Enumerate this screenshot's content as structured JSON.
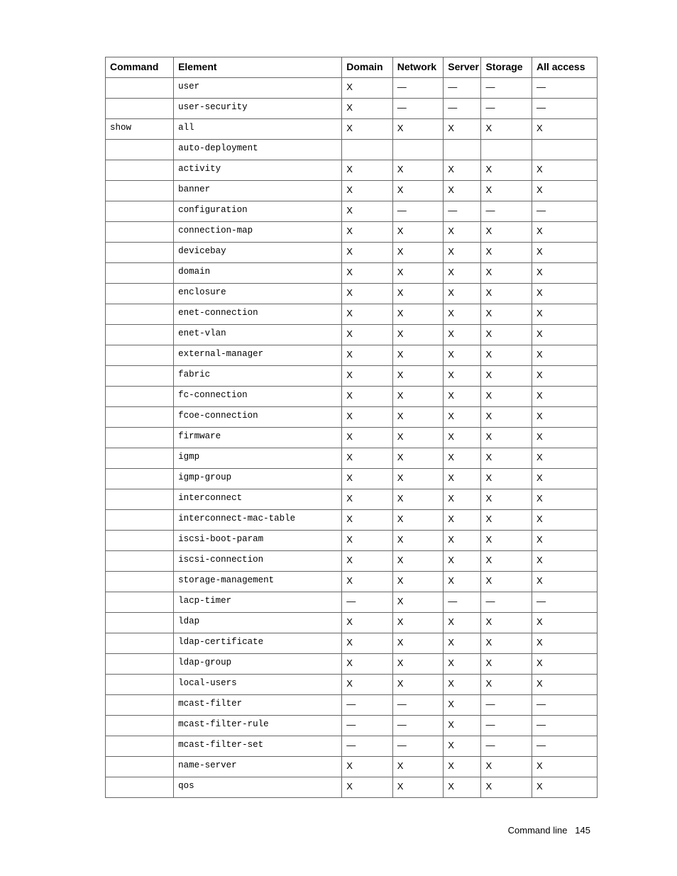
{
  "table": {
    "headers": [
      "Command",
      "Element",
      "Domain",
      "Network",
      "Server",
      "Storage",
      "All access"
    ],
    "rows": [
      {
        "command": "",
        "element": "user",
        "domain": "X",
        "network": "—",
        "server": "—",
        "storage": "—",
        "all": "—"
      },
      {
        "command": "",
        "element": "user-security",
        "domain": "X",
        "network": "—",
        "server": "—",
        "storage": "—",
        "all": "—"
      },
      {
        "command": "show",
        "element": "all",
        "domain": "X",
        "network": "X",
        "server": "X",
        "storage": "X",
        "all": "X"
      },
      {
        "command": "",
        "element": "auto-deployment",
        "domain": "",
        "network": "",
        "server": "",
        "storage": "",
        "all": ""
      },
      {
        "command": "",
        "element": "activity",
        "domain": "X",
        "network": "X",
        "server": "X",
        "storage": "X",
        "all": "X"
      },
      {
        "command": "",
        "element": "banner",
        "domain": "X",
        "network": "X",
        "server": "X",
        "storage": "X",
        "all": "X"
      },
      {
        "command": "",
        "element": "configuration",
        "domain": "X",
        "network": "—",
        "server": "—",
        "storage": "—",
        "all": "—"
      },
      {
        "command": "",
        "element": "connection-map",
        "domain": "X",
        "network": "X",
        "server": "X",
        "storage": "X",
        "all": "X"
      },
      {
        "command": "",
        "element": "devicebay",
        "domain": "X",
        "network": "X",
        "server": "X",
        "storage": "X",
        "all": "X"
      },
      {
        "command": "",
        "element": "domain",
        "domain": "X",
        "network": "X",
        "server": "X",
        "storage": "X",
        "all": "X"
      },
      {
        "command": "",
        "element": "enclosure",
        "domain": "X",
        "network": "X",
        "server": "X",
        "storage": "X",
        "all": "X"
      },
      {
        "command": "",
        "element": "enet-connection",
        "domain": "X",
        "network": "X",
        "server": "X",
        "storage": "X",
        "all": "X"
      },
      {
        "command": "",
        "element": "enet-vlan",
        "domain": "X",
        "network": "X",
        "server": "X",
        "storage": "X",
        "all": "X"
      },
      {
        "command": "",
        "element": "external-manager",
        "domain": "X",
        "network": "X",
        "server": "X",
        "storage": "X",
        "all": "X"
      },
      {
        "command": "",
        "element": "fabric",
        "domain": "X",
        "network": "X",
        "server": "X",
        "storage": "X",
        "all": "X"
      },
      {
        "command": "",
        "element": "fc-connection",
        "domain": "X",
        "network": "X",
        "server": "X",
        "storage": "X",
        "all": "X"
      },
      {
        "command": "",
        "element": "fcoe-connection",
        "domain": "X",
        "network": "X",
        "server": "X",
        "storage": "X",
        "all": "X"
      },
      {
        "command": "",
        "element": "firmware",
        "domain": "X",
        "network": "X",
        "server": "X",
        "storage": "X",
        "all": "X"
      },
      {
        "command": "",
        "element": "igmp",
        "domain": "X",
        "network": "X",
        "server": "X",
        "storage": "X",
        "all": "X"
      },
      {
        "command": "",
        "element": "igmp-group",
        "domain": "X",
        "network": "X",
        "server": "X",
        "storage": "X",
        "all": "X"
      },
      {
        "command": "",
        "element": "interconnect",
        "domain": "X",
        "network": "X",
        "server": "X",
        "storage": "X",
        "all": "X"
      },
      {
        "command": "",
        "element": "interconnect-mac-table",
        "domain": "X",
        "network": "X",
        "server": "X",
        "storage": "X",
        "all": "X"
      },
      {
        "command": "",
        "element": "iscsi-boot-param",
        "domain": "X",
        "network": "X",
        "server": "X",
        "storage": "X",
        "all": "X"
      },
      {
        "command": "",
        "element": "iscsi-connection",
        "domain": "X",
        "network": "X",
        "server": "X",
        "storage": "X",
        "all": "X"
      },
      {
        "command": "",
        "element": "storage-management",
        "domain": "X",
        "network": "X",
        "server": "X",
        "storage": "X",
        "all": "X"
      },
      {
        "command": "",
        "element": "lacp-timer",
        "domain": "—",
        "network": "X",
        "server": "—",
        "storage": "—",
        "all": "—"
      },
      {
        "command": "",
        "element": "ldap",
        "domain": "X",
        "network": "X",
        "server": "X",
        "storage": "X",
        "all": "X"
      },
      {
        "command": "",
        "element": "ldap-certificate",
        "domain": "X",
        "network": "X",
        "server": "X",
        "storage": "X",
        "all": "X"
      },
      {
        "command": "",
        "element": "ldap-group",
        "domain": "X",
        "network": "X",
        "server": "X",
        "storage": "X",
        "all": "X"
      },
      {
        "command": "",
        "element": "local-users",
        "domain": "X",
        "network": "X",
        "server": "X",
        "storage": "X",
        "all": "X"
      },
      {
        "command": "",
        "element": "mcast-filter",
        "domain": "—",
        "network": "—",
        "server": "X",
        "storage": "—",
        "all": "—"
      },
      {
        "command": "",
        "element": "mcast-filter-rule",
        "domain": "—",
        "network": "—",
        "server": "X",
        "storage": "—",
        "all": "—"
      },
      {
        "command": "",
        "element": "mcast-filter-set",
        "domain": "—",
        "network": "—",
        "server": "X",
        "storage": "—",
        "all": "—"
      },
      {
        "command": "",
        "element": "name-server",
        "domain": "X",
        "network": "X",
        "server": "X",
        "storage": "X",
        "all": "X"
      },
      {
        "command": "",
        "element": "qos",
        "domain": "X",
        "network": "X",
        "server": "X",
        "storage": "X",
        "all": "X"
      }
    ]
  },
  "footer": {
    "section": "Command line",
    "page": "145"
  }
}
